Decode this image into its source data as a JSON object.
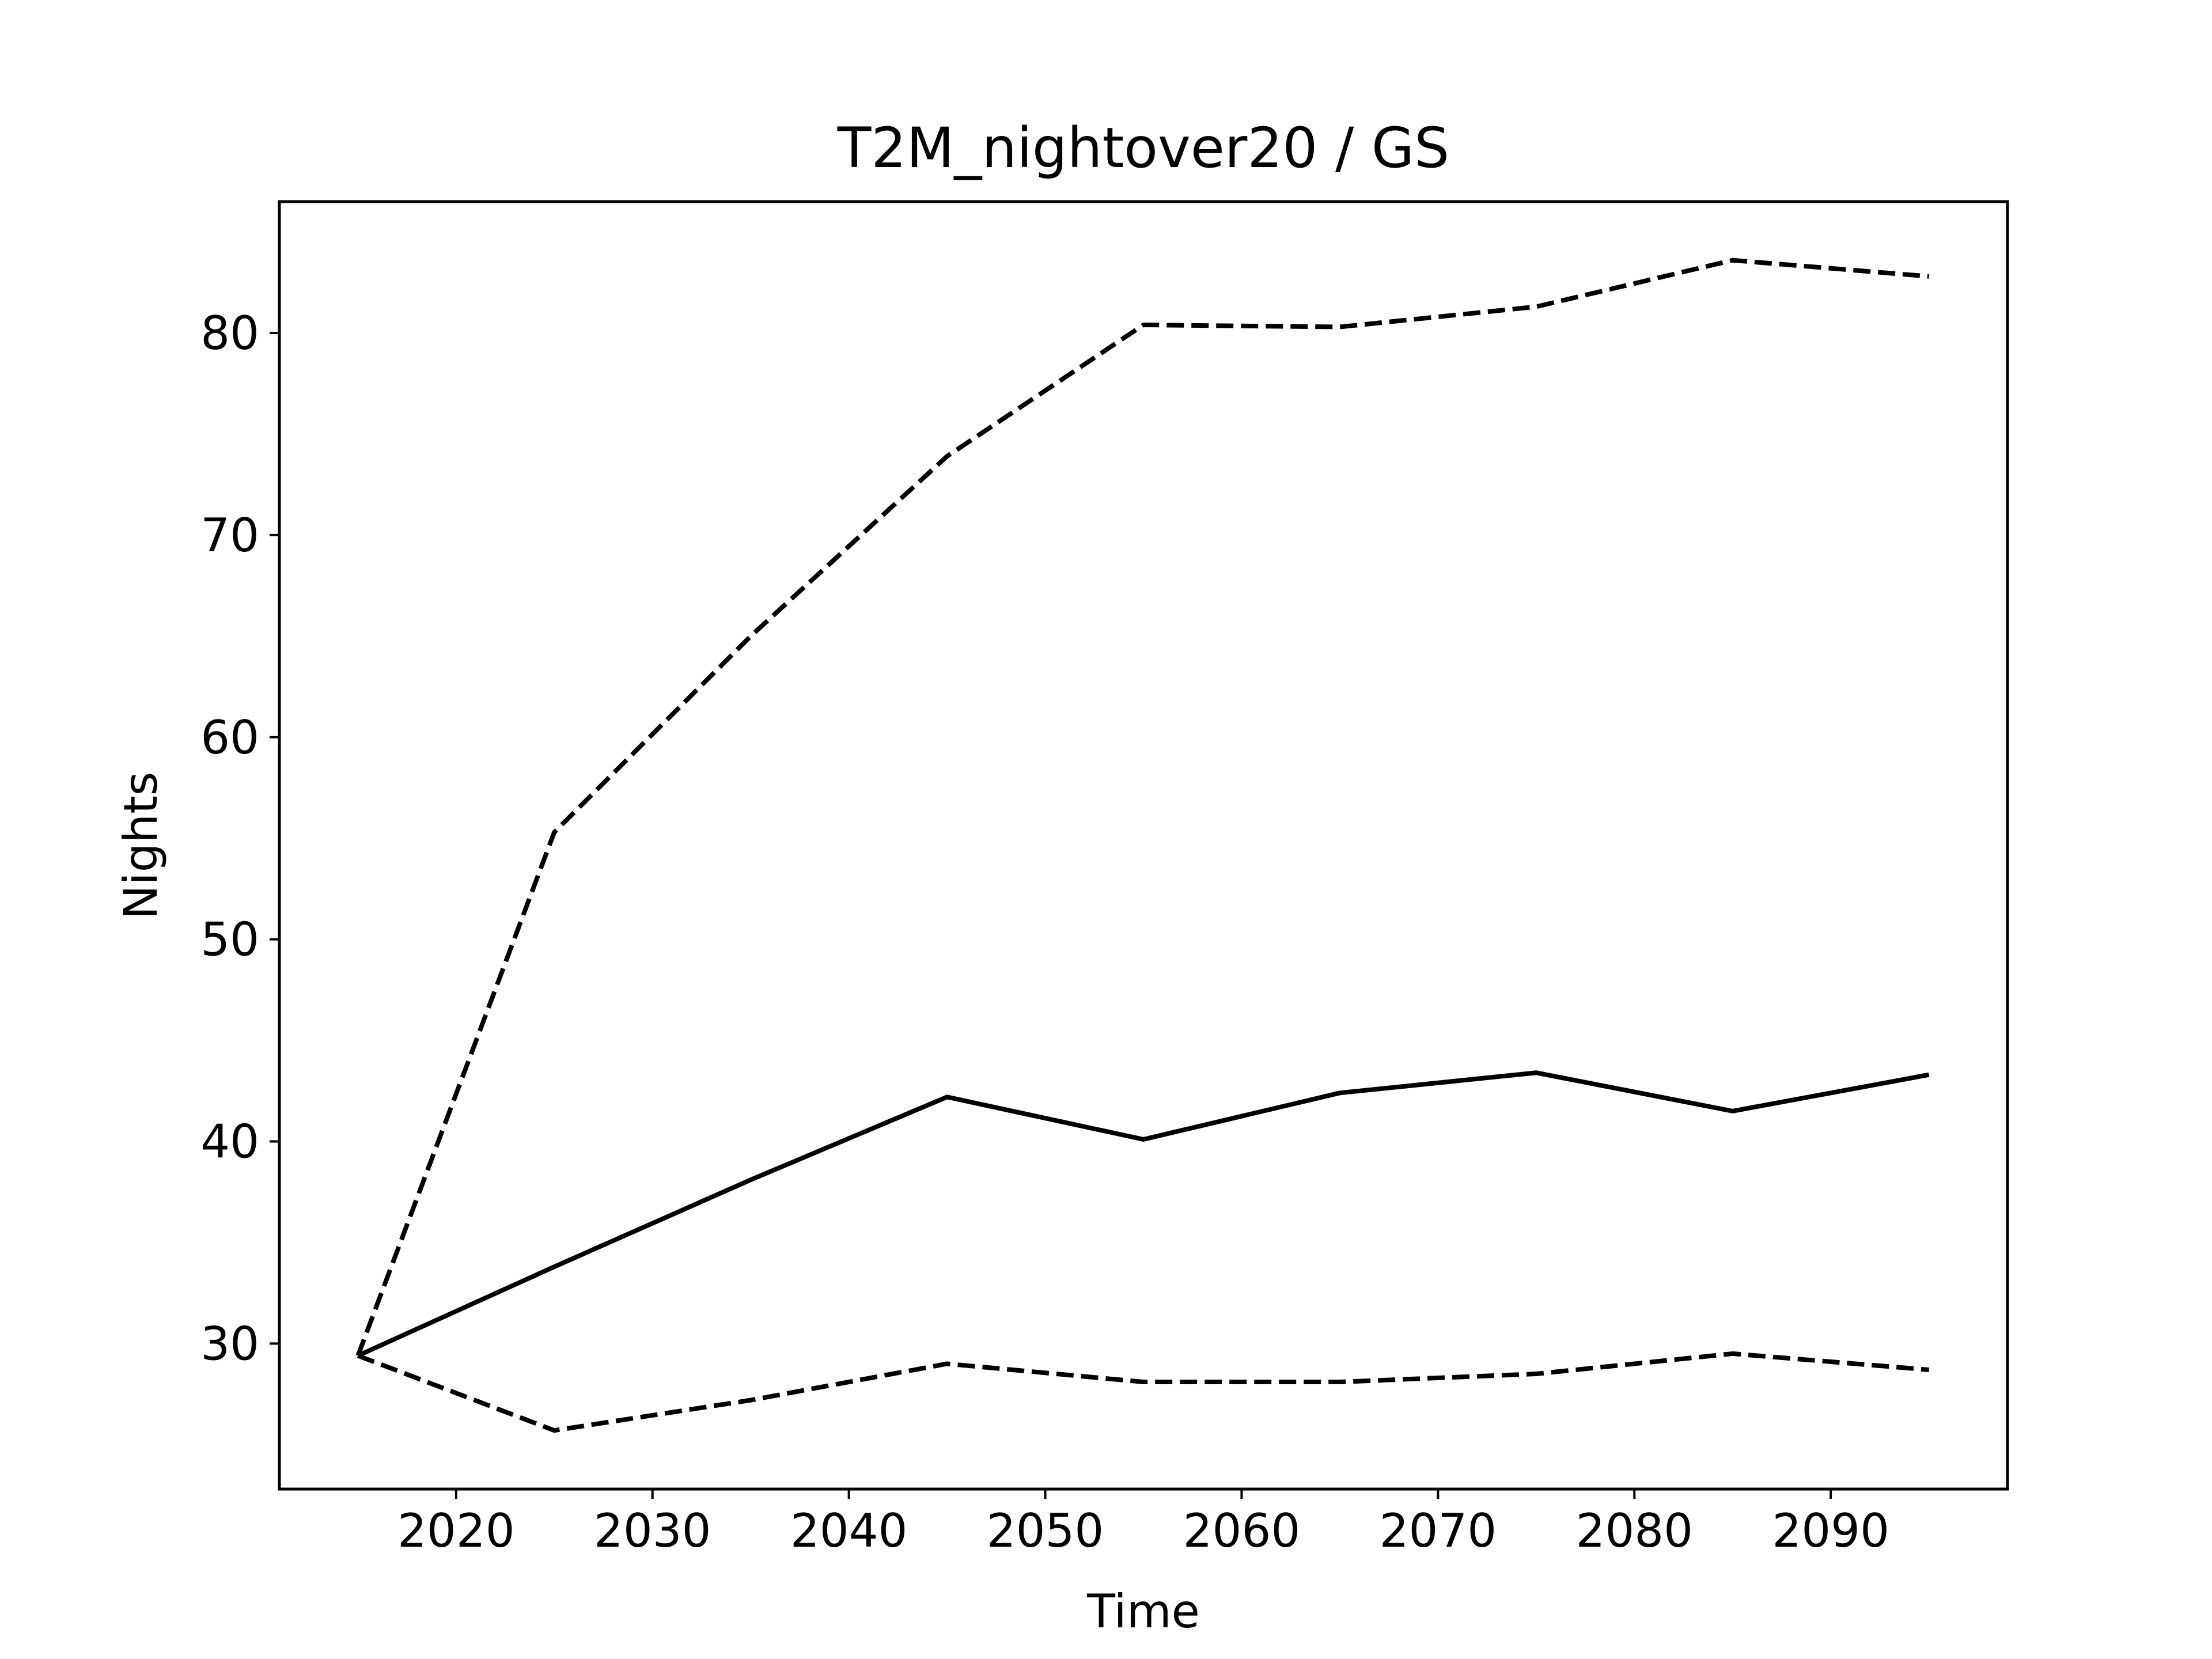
{
  "chart_data": {
    "type": "line",
    "title": "T2M_nightover20 / GS",
    "xlabel": "Time",
    "ylabel": "Nights",
    "xlim": [
      2011,
      2099
    ],
    "ylim": [
      22.8,
      86.5
    ],
    "xticks": [
      2020,
      2030,
      2040,
      2050,
      2060,
      2070,
      2080,
      2090
    ],
    "yticks": [
      30,
      40,
      50,
      60,
      70,
      80
    ],
    "grid": false,
    "x": [
      2015,
      2025,
      2035,
      2045,
      2055,
      2065,
      2075,
      2085,
      2095
    ],
    "series": [
      {
        "style": "solid",
        "color": "#000000",
        "values": [
          29.4,
          33.8,
          38.1,
          42.2,
          40.1,
          42.4,
          43.4,
          41.5,
          43.3
        ]
      },
      {
        "style": "dashed",
        "color": "#000000",
        "values": [
          29.4,
          55.3,
          65.0,
          73.9,
          80.4,
          80.3,
          81.3,
          83.6,
          82.8
        ]
      },
      {
        "style": "dashed",
        "color": "#000000",
        "values": [
          29.4,
          25.7,
          27.2,
          29.0,
          28.1,
          28.1,
          28.5,
          29.5,
          28.7
        ]
      }
    ]
  }
}
